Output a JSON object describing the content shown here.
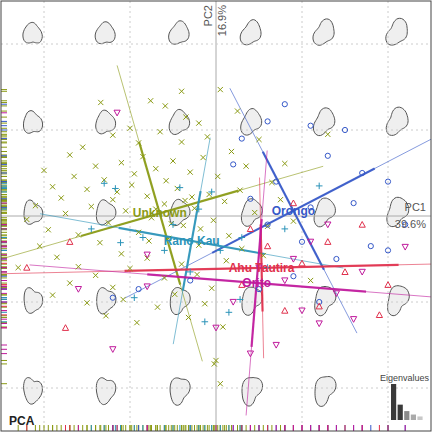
{
  "chart_data": {
    "type": "scatter",
    "title": "PCA",
    "xlabel": "PC1",
    "xlabel_variance": "39.6%",
    "ylabel": "PC2",
    "ylabel_variance": "16.9%",
    "xlim": [
      -25,
      25
    ],
    "ylim": [
      -25,
      25
    ],
    "xticks": [
      -20,
      -10,
      0,
      10,
      20
    ],
    "yticks": [
      -20,
      -10,
      0,
      10,
      20
    ],
    "grid": true,
    "tick_labels": false,
    "series": [
      {
        "name": "Unknown",
        "color": "#8a9a14",
        "marker": "x",
        "x": [
          -13.4,
          -7.6,
          -5.9,
          -3.5,
          -10,
          -9,
          -12,
          -15.5,
          -17,
          -6.5,
          -4,
          -2,
          0.5,
          2.5,
          -1,
          -8.5,
          -11,
          -14,
          -16.5,
          -19,
          -21,
          -20,
          -18,
          -15,
          -13,
          -11.5,
          -9.5,
          -7,
          -5,
          -3,
          -1.5,
          0.2,
          1.8,
          3.5,
          5,
          6.5,
          8,
          -22,
          -19.5,
          -17.5,
          -16,
          -14.5,
          -12.5,
          -10.5,
          -8,
          -6,
          -4.5,
          -2.5,
          -0.8,
          1,
          2.8,
          4.5,
          6,
          7.5,
          9,
          -20.5,
          -18.5,
          -16,
          -13.5,
          -11,
          -9,
          -7.5,
          -5.5,
          -3.8,
          -2,
          -0.3,
          1.5,
          3,
          5.5,
          -17,
          -14,
          -12,
          -10,
          -8,
          -6,
          -4,
          -2.2,
          -0.5,
          1.2,
          -15,
          -12.8,
          -10.8,
          -9.2,
          -6.8,
          -4.8,
          -3.2,
          -1.3,
          0.8,
          -12,
          -9.8,
          -7.8,
          -5.8,
          -3.6,
          -1.8,
          0,
          -7,
          -5.2,
          -2.8,
          -0.2,
          -4,
          0.5,
          11,
          13,
          -23,
          -19
        ],
        "values": [
          13.2,
          13.4,
          12.8,
          11.5,
          10.2,
          8.5,
          9.4,
          8,
          7.1,
          9.8,
          8.6,
          10.8,
          14.7,
          12.2,
          9.2,
          6.9,
          6.2,
          5.8,
          4.6,
          3.4,
          1.2,
          5.3,
          2.1,
          3.1,
          4.2,
          2.8,
          4.9,
          5.5,
          6.4,
          5.1,
          6.8,
          4.6,
          7.5,
          5.8,
          8.9,
          3.9,
          6.1,
          -0.4,
          -1.6,
          0.3,
          -2.2,
          1.1,
          -0.8,
          0.6,
          2.3,
          1.4,
          3.2,
          0.9,
          2.5,
          1.7,
          3.0,
          0.4,
          -1.2,
          1.9,
          -0.6,
          -3.5,
          -4.8,
          -5.9,
          -3.1,
          -4.4,
          -1.9,
          -0.2,
          -2.6,
          -1.1,
          -3.4,
          -0.5,
          -2.3,
          -3.8,
          -4.6,
          -7.8,
          -6.9,
          -8.3,
          -6.1,
          -4.9,
          -7.2,
          -5.6,
          -6.8,
          -8.4,
          -5.2,
          -10.1,
          -11.6,
          -9.7,
          -12.4,
          -10.6,
          -9.1,
          -11.8,
          -10.2,
          -12.9,
          1.9,
          3.6,
          -2.9,
          4.1,
          1.8,
          -1.5,
          -16.8,
          0.8,
          -0.9,
          2.2,
          -17.2,
          14.5,
          -19.5,
          -7.5,
          9.5,
          -6,
          -9.2
        ]
      },
      {
        "name": "Orongo",
        "color": "#3558c8",
        "marker": "circle",
        "x": [
          8,
          6,
          11,
          13,
          17,
          20,
          16,
          18,
          22,
          14,
          10,
          6,
          4,
          2,
          -9,
          -12,
          12,
          9,
          20,
          5,
          3,
          15,
          -3,
          11,
          7
        ],
        "values": [
          13,
          11,
          10.5,
          7,
          5,
          4,
          1.5,
          -3.5,
          -1,
          -5,
          -3,
          -1,
          2,
          6,
          -8.5,
          -9.5,
          -10,
          -7,
          -4,
          -8.5,
          9,
          10,
          -7.5,
          1,
          4
        ]
      },
      {
        "name": "Rano Kau",
        "color": "#2b93b8",
        "marker": "plus",
        "x": [
          -11.7,
          -11.1,
          -1.3,
          2.8,
          -4.2,
          -14.5,
          -8.5,
          -6,
          -3,
          0.5,
          3,
          6,
          -2,
          8,
          12,
          -9.5,
          1.5,
          -0.5,
          -13,
          -5
        ],
        "values": [
          3.2,
          -3.1,
          -12.3,
          -9.7,
          3.3,
          -1.5,
          -2.5,
          -4,
          -6.5,
          -4,
          -2.5,
          -6,
          0.8,
          -1.5,
          3.5,
          -9.5,
          -11.2,
          2.8,
          3.8,
          -1
        ]
      },
      {
        "name": "Ahu Tautira",
        "color": "#e0304c",
        "marker": "triangle",
        "x": [
          13,
          15,
          12,
          19,
          20,
          3,
          6,
          -17,
          -17.5,
          -22,
          8,
          10,
          17,
          4,
          9
        ],
        "values": [
          -3,
          -6.5,
          -10.5,
          -11.5,
          -8,
          -8,
          -3.5,
          -3,
          -13,
          -6,
          -11,
          -5.5,
          -1,
          -1.5,
          1.5
        ]
      },
      {
        "name": "Orito",
        "color": "#c01a9c",
        "marker": "triangle-down",
        "x": [
          5,
          8,
          10,
          12,
          14,
          17,
          22,
          2,
          0,
          7,
          -12,
          -16,
          11,
          16,
          4,
          9,
          -8,
          -11.5,
          -8,
          13
        ],
        "values": [
          -6,
          -7.5,
          -11,
          -12.5,
          -9,
          -6.5,
          -3.6,
          -10,
          -13,
          -15,
          -15.5,
          -8.5,
          -3,
          -12,
          -16,
          -5,
          -8.2,
          12,
          -4.5,
          -1
        ]
      }
    ],
    "eigenvalues": {
      "title": "Eigenvalues",
      "values": [
        39.6,
        16.9,
        9.8,
        6.0,
        3.9
      ]
    }
  }
}
